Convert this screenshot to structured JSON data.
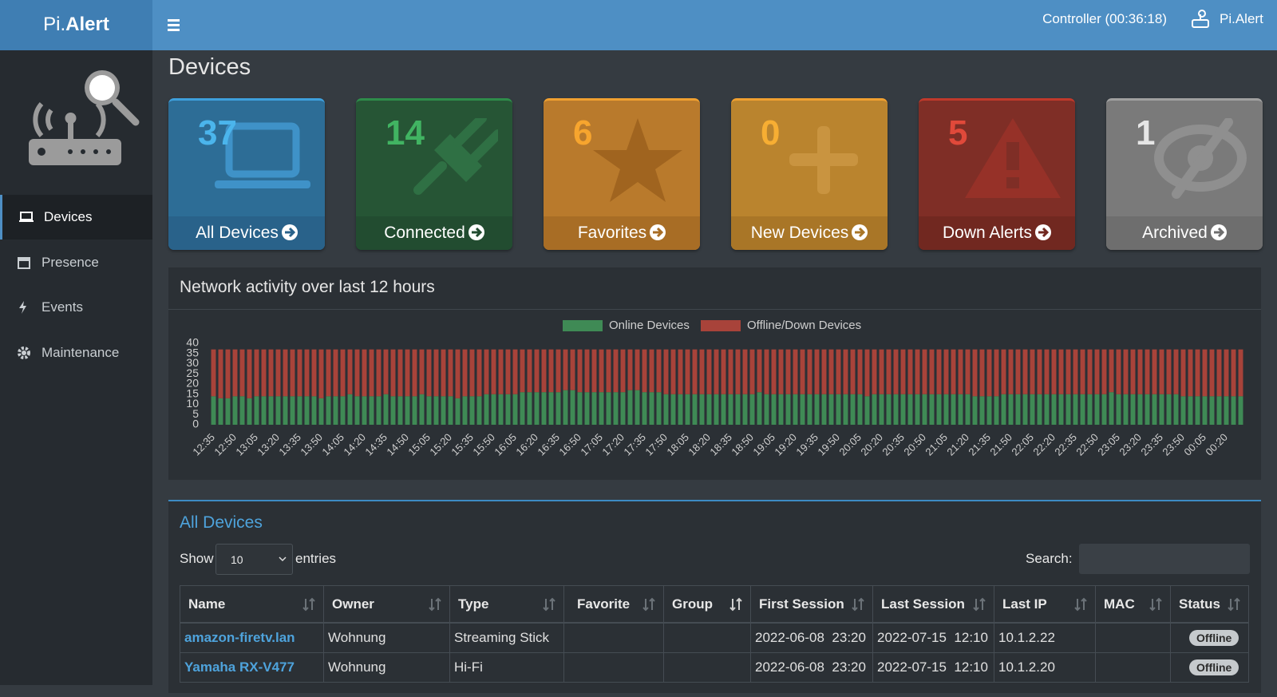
{
  "header": {
    "brand_light": "Pi.",
    "brand_bold": "Alert",
    "controller": "Controller (00:36:18)",
    "user": "Pi.Alert"
  },
  "sidebar": {
    "menu": [
      "Devices",
      "Presence",
      "Events",
      "Maintenance"
    ],
    "active": 0
  },
  "page_title": "Devices",
  "cards": [
    {
      "count": 37,
      "label": "All Devices"
    },
    {
      "count": 14,
      "label": "Connected"
    },
    {
      "count": 6,
      "label": "Favorites"
    },
    {
      "count": 0,
      "label": "New Devices"
    },
    {
      "count": 5,
      "label": "Down Alerts"
    },
    {
      "count": 1,
      "label": "Archived"
    }
  ],
  "chart_data": {
    "type": "stacked_bar",
    "title": "Network activity over last 12 hours",
    "categories": [
      "12:35",
      null,
      null,
      "12:50",
      null,
      null,
      "13:05",
      null,
      null,
      "13:20",
      null,
      null,
      "13:35",
      null,
      null,
      "13:50",
      null,
      null,
      "14:05",
      null,
      null,
      "14:20",
      null,
      null,
      "14:35",
      null,
      null,
      "14:50",
      null,
      null,
      "15:05",
      null,
      null,
      "15:20",
      null,
      null,
      "15:35",
      null,
      null,
      "15:50",
      null,
      null,
      "16:05",
      null,
      null,
      "16:20",
      null,
      null,
      "16:35",
      null,
      null,
      "16:50",
      null,
      null,
      "17:05",
      null,
      null,
      "17:20",
      null,
      null,
      "17:35",
      null,
      null,
      "17:50",
      null,
      null,
      "18:05",
      null,
      null,
      "18:20",
      null,
      null,
      "18:35",
      null,
      null,
      "18:50",
      null,
      null,
      "19:05",
      null,
      null,
      "19:20",
      null,
      null,
      "19:35",
      null,
      null,
      "19:50",
      null,
      null,
      "20:05",
      null,
      null,
      "20:20",
      null,
      null,
      "20:35",
      null,
      null,
      "20:50",
      null,
      null,
      "21:05",
      null,
      null,
      "21:20",
      null,
      null,
      "21:35",
      null,
      null,
      "21:50",
      null,
      null,
      "22:05",
      null,
      null,
      "22:20",
      null,
      null,
      "22:35",
      null,
      null,
      "22:50",
      null,
      null,
      "23:05",
      null,
      null,
      "23:20",
      null,
      null,
      "23:35",
      null,
      null,
      "23:50",
      null,
      null,
      "00:05",
      null,
      null,
      "00:20",
      null,
      null
    ],
    "series": [
      {
        "name": "Online Devices",
        "color": "#3f8a55",
        "values": [
          14,
          13,
          13,
          14,
          14,
          13,
          14,
          14,
          14,
          14,
          14,
          14,
          14,
          14,
          14,
          13,
          14,
          14,
          14,
          15,
          14,
          14,
          14,
          14,
          15,
          14,
          14,
          14,
          14,
          15,
          14,
          14,
          14,
          14,
          13,
          14,
          14,
          14,
          15,
          15,
          15,
          15,
          15,
          16,
          16,
          16,
          16,
          16,
          16,
          17,
          17,
          16,
          16,
          16,
          16,
          16,
          16,
          16,
          17,
          17,
          16,
          16,
          16,
          15,
          15,
          15,
          15,
          15,
          15,
          15,
          15,
          15,
          15,
          15,
          15,
          15,
          16,
          15,
          15,
          15,
          15,
          15,
          15,
          15,
          15,
          15,
          15,
          15,
          15,
          15,
          15,
          14,
          15,
          15,
          15,
          15,
          15,
          15,
          15,
          15,
          15,
          15,
          15,
          15,
          15,
          15,
          14,
          14,
          14,
          14,
          15,
          15,
          15,
          15,
          15,
          15,
          15,
          15,
          15,
          15,
          15,
          15,
          15,
          15,
          15,
          16,
          15,
          15,
          15,
          15,
          15,
          15,
          15,
          15,
          15,
          14,
          14,
          14,
          14,
          14,
          14,
          14,
          14,
          14
        ]
      },
      {
        "name": "Offline/Down Devices",
        "color": "#a8433a",
        "values": [
          23,
          24,
          24,
          23,
          23,
          24,
          23,
          23,
          23,
          23,
          23,
          23,
          23,
          23,
          23,
          24,
          23,
          23,
          23,
          22,
          23,
          23,
          23,
          23,
          22,
          23,
          23,
          23,
          23,
          22,
          23,
          23,
          23,
          23,
          24,
          23,
          23,
          23,
          22,
          22,
          22,
          22,
          22,
          21,
          21,
          21,
          21,
          21,
          21,
          20,
          20,
          21,
          21,
          21,
          21,
          21,
          21,
          21,
          20,
          20,
          21,
          21,
          21,
          22,
          22,
          22,
          22,
          22,
          22,
          22,
          22,
          22,
          22,
          22,
          22,
          22,
          21,
          22,
          22,
          22,
          22,
          22,
          22,
          22,
          22,
          22,
          22,
          22,
          22,
          22,
          22,
          23,
          22,
          22,
          22,
          22,
          22,
          22,
          22,
          22,
          22,
          22,
          22,
          22,
          22,
          22,
          23,
          23,
          23,
          23,
          22,
          22,
          22,
          22,
          22,
          22,
          22,
          22,
          22,
          22,
          22,
          22,
          22,
          22,
          22,
          21,
          22,
          22,
          22,
          22,
          22,
          22,
          22,
          22,
          22,
          23,
          23,
          23,
          23,
          23,
          23,
          23,
          23,
          23
        ]
      }
    ],
    "ylim": [
      0,
      40
    ],
    "yticks": [
      0,
      5,
      10,
      15,
      20,
      25,
      30,
      35,
      40
    ],
    "grid": false,
    "legend": "top"
  },
  "table": {
    "title": "All Devices",
    "show": "Show",
    "page_length": 10,
    "entries": "entries",
    "search": "Search:",
    "columns": [
      "Name",
      "Owner",
      "Type",
      "Favorite",
      "Group",
      "First Session",
      "Last Session",
      "Last IP",
      "MAC",
      "Status"
    ],
    "rows": [
      [
        "amazon-firetv.lan",
        "Wohnung",
        "Streaming Stick",
        null,
        null,
        "2022-06-08  23:20",
        "2022-07-15  12:10",
        "10.1.2.22",
        null,
        "Offline"
      ],
      [
        "Yamaha RX-V477",
        "Wohnung",
        "Hi-Fi",
        null,
        null,
        "2022-06-08  23:20",
        "2022-07-15  12:10",
        "10.1.2.20",
        null,
        "Offline"
      ]
    ]
  }
}
